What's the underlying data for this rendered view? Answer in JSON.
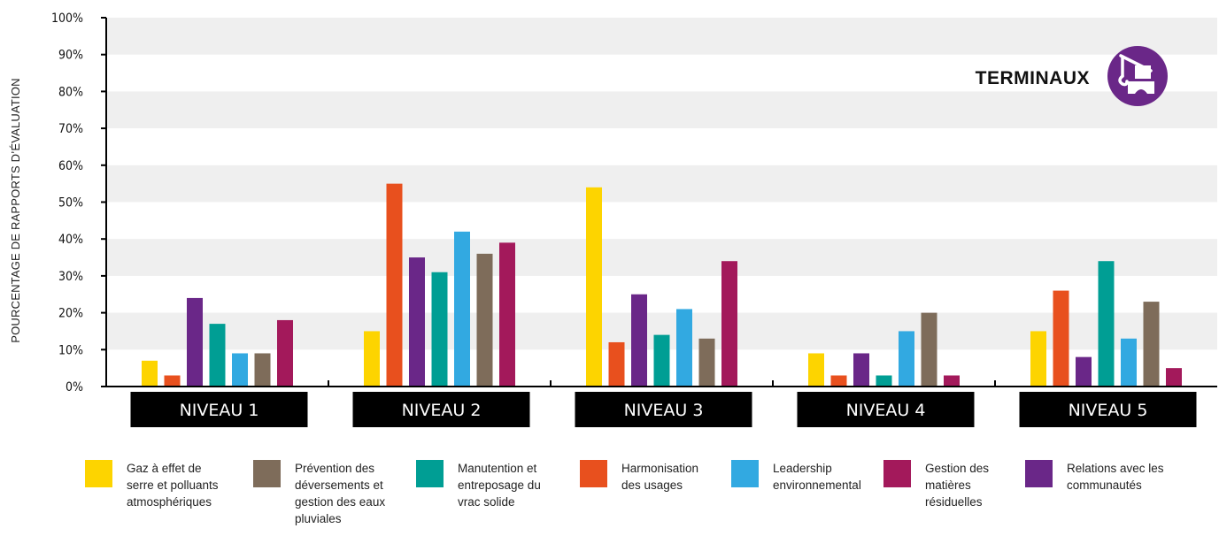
{
  "chart_data": {
    "type": "bar",
    "title": "",
    "badge_label": "TERMINAUX",
    "badge_icon": "crane-icon",
    "ylabel": "POURCENTAGE DE RAPPORTS D’ÉVALUATION",
    "xlabel": "",
    "ylim": [
      0,
      100
    ],
    "yticks": [
      "0%",
      "10%",
      "20%",
      "30%",
      "40%",
      "50%",
      "60%",
      "70%",
      "80%",
      "90%",
      "100%"
    ],
    "grid": "alternating bands",
    "legend_position": "bottom",
    "categories": [
      "NIVEAU 1",
      "NIVEAU 2",
      "NIVEAU 3",
      "NIVEAU 4",
      "NIVEAU 5"
    ],
    "series": [
      {
        "name": "Gaz à effet de\nserre et polluants\natmosphériques",
        "color": "#FDD400",
        "values": [
          7,
          15,
          54,
          9,
          15
        ]
      },
      {
        "name": "Harmonisation\ndes usages",
        "color": "#E8501E",
        "values": [
          3,
          55,
          12,
          3,
          26
        ]
      },
      {
        "name": "Relations avec les\ncommunautés",
        "color": "#6A2788",
        "values": [
          24,
          35,
          25,
          9,
          8
        ]
      },
      {
        "name": "Manutention et\nentreposage du\nvrac solide",
        "color": "#009E94",
        "values": [
          17,
          31,
          14,
          3,
          34
        ]
      },
      {
        "name": "Leadership\nenvironnemental",
        "color": "#32A9E1",
        "values": [
          9,
          42,
          21,
          15,
          13
        ]
      },
      {
        "name": "Prévention des\ndéversements et\ngestion des eaux\npluviales",
        "color": "#7E6C5A",
        "values": [
          9,
          36,
          13,
          20,
          23
        ]
      },
      {
        "name": "Gestion des\nmatières\nrésiduelles",
        "color": "#A3195B",
        "values": [
          18,
          39,
          34,
          3,
          5
        ]
      }
    ],
    "legend_order": [
      0,
      5,
      3,
      1,
      4,
      6,
      2
    ]
  }
}
